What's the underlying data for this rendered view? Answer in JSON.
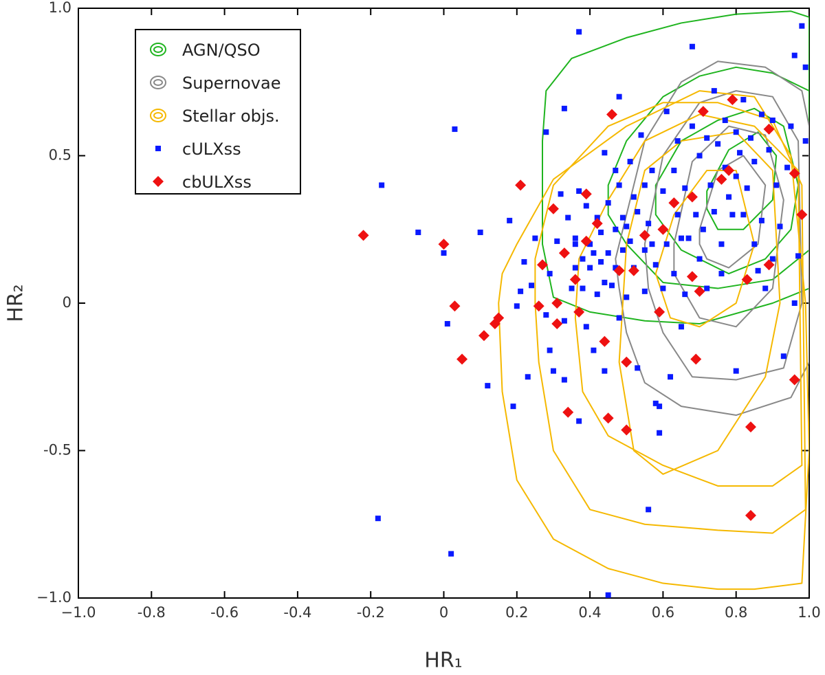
{
  "chart_data": {
    "type": "scatter",
    "xlabel": "HR₁",
    "ylabel": "HR₂",
    "xlim": [
      -1,
      1
    ],
    "ylim": [
      -1,
      1
    ],
    "xticks": [
      {
        "value": -1,
        "label": "−1.0"
      },
      -0.8,
      -0.6,
      -0.4,
      -0.2,
      0,
      0.2,
      0.4,
      0.6,
      0.8,
      {
        "value": 1,
        "label": "1.0"
      }
    ],
    "yticks": [
      {
        "value": -1,
        "label": "−1.0"
      },
      -0.5,
      0,
      0.5,
      {
        "value": 1,
        "label": "1.0"
      }
    ],
    "legend": "upper-left",
    "series": [
      {
        "name": "AGN/QSO",
        "color": "#1fb41f",
        "marker": "contour",
        "contours": [
          {
            "x": [
              0.27,
              0.28,
              0.35,
              0.5,
              0.65,
              0.8,
              0.95,
              1.0,
              1.0,
              0.9,
              0.7,
              0.55,
              0.4,
              0.3,
              0.27
            ],
            "y": [
              0.55,
              0.72,
              0.83,
              0.9,
              0.95,
              0.98,
              0.99,
              0.97,
              0.05,
              0.0,
              -0.07,
              -0.06,
              -0.03,
              0.02,
              0.2
            ]
          },
          {
            "x": [
              0.45,
              0.5,
              0.6,
              0.7,
              0.8,
              0.9,
              1.0,
              1.0,
              0.9,
              0.75,
              0.6,
              0.5,
              0.45
            ],
            "y": [
              0.4,
              0.55,
              0.7,
              0.77,
              0.8,
              0.78,
              0.72,
              0.18,
              0.08,
              0.05,
              0.07,
              0.2,
              0.3
            ]
          },
          {
            "x": [
              0.58,
              0.65,
              0.75,
              0.85,
              0.93,
              0.97,
              0.95,
              0.88,
              0.78,
              0.65,
              0.58
            ],
            "y": [
              0.4,
              0.55,
              0.62,
              0.66,
              0.6,
              0.4,
              0.25,
              0.15,
              0.1,
              0.18,
              0.3
            ]
          },
          {
            "x": [
              0.72,
              0.78,
              0.86,
              0.91,
              0.9,
              0.82,
              0.75,
              0.72
            ],
            "y": [
              0.38,
              0.52,
              0.58,
              0.5,
              0.35,
              0.25,
              0.25,
              0.32
            ]
          }
        ]
      },
      {
        "name": "Supernovae",
        "color": "#888888",
        "marker": "contour",
        "contours": [
          {
            "x": [
              0.48,
              0.55,
              0.65,
              0.75,
              0.88,
              0.98,
              1.0,
              1.0,
              0.95,
              0.8,
              0.65,
              0.55,
              0.5,
              0.48,
              0.47
            ],
            "y": [
              0.2,
              0.55,
              0.75,
              0.82,
              0.8,
              0.72,
              0.6,
              -0.2,
              -0.32,
              -0.38,
              -0.35,
              -0.27,
              -0.1,
              0.05,
              0.15
            ]
          },
          {
            "x": [
              0.55,
              0.6,
              0.7,
              0.8,
              0.9,
              0.97,
              0.98,
              0.93,
              0.8,
              0.68,
              0.6,
              0.56
            ],
            "y": [
              0.2,
              0.5,
              0.68,
              0.72,
              0.7,
              0.55,
              0.0,
              -0.22,
              -0.26,
              -0.25,
              -0.1,
              0.05
            ]
          },
          {
            "x": [
              0.63,
              0.68,
              0.78,
              0.88,
              0.93,
              0.9,
              0.8,
              0.7,
              0.63
            ],
            "y": [
              0.2,
              0.48,
              0.6,
              0.57,
              0.35,
              0.05,
              -0.08,
              -0.05,
              0.1
            ]
          },
          {
            "x": [
              0.7,
              0.75,
              0.82,
              0.88,
              0.86,
              0.78,
              0.72,
              0.7
            ],
            "y": [
              0.25,
              0.45,
              0.5,
              0.4,
              0.2,
              0.12,
              0.15,
              0.2
            ]
          }
        ]
      },
      {
        "name": "Stellar objs.",
        "color": "#f5b800",
        "marker": "contour",
        "contours": [
          {
            "x": [
              0.15,
              0.16,
              0.2,
              0.3,
              0.45,
              0.6,
              0.75,
              0.85,
              0.98,
              1.0,
              0.99,
              0.95,
              0.85,
              0.7,
              0.5,
              0.3,
              0.2,
              0.16,
              0.15
            ],
            "y": [
              0.0,
              -0.3,
              -0.6,
              -0.8,
              -0.9,
              -0.95,
              -0.97,
              -0.97,
              -0.95,
              -0.5,
              0.0,
              0.5,
              0.7,
              0.72,
              0.6,
              0.42,
              0.2,
              0.1,
              0.0
            ]
          },
          {
            "x": [
              0.25,
              0.3,
              0.45,
              0.6,
              0.75,
              0.9,
              0.98,
              0.99,
              0.9,
              0.75,
              0.55,
              0.4,
              0.3,
              0.26,
              0.25
            ],
            "y": [
              0.15,
              0.4,
              0.6,
              0.68,
              0.68,
              0.62,
              0.4,
              -0.7,
              -0.78,
              -0.77,
              -0.75,
              -0.7,
              -0.5,
              -0.2,
              0.0
            ]
          },
          {
            "x": [
              0.37,
              0.45,
              0.55,
              0.7,
              0.85,
              0.97,
              0.98,
              0.9,
              0.75,
              0.6,
              0.45,
              0.38,
              0.36,
              0.37
            ],
            "y": [
              0.15,
              0.35,
              0.55,
              0.64,
              0.6,
              0.45,
              -0.55,
              -0.62,
              -0.62,
              -0.55,
              -0.45,
              -0.3,
              -0.05,
              0.15
            ]
          },
          {
            "x": [
              0.5,
              0.55,
              0.65,
              0.8,
              0.9,
              0.92,
              0.88,
              0.75,
              0.6,
              0.52,
              0.48,
              0.5
            ],
            "y": [
              0.2,
              0.45,
              0.55,
              0.58,
              0.45,
              0.0,
              -0.25,
              -0.5,
              -0.58,
              -0.5,
              -0.2,
              0.2
            ]
          },
          {
            "x": [
              0.58,
              0.63,
              0.72,
              0.8,
              0.85,
              0.8,
              0.7,
              0.62,
              0.58
            ],
            "y": [
              0.1,
              0.3,
              0.45,
              0.45,
              0.2,
              0.0,
              -0.08,
              -0.05,
              0.1
            ]
          }
        ]
      },
      {
        "name": "cULXss",
        "color": "#0a1aff",
        "marker": "square",
        "x": [
          -0.18,
          0.02,
          -0.17,
          0.03,
          -0.07,
          0.0,
          0.01,
          0.1,
          0.12,
          0.19,
          0.18,
          0.2,
          0.21,
          0.22,
          0.23,
          0.24,
          0.25,
          0.28,
          0.28,
          0.29,
          0.3,
          0.29,
          0.31,
          0.32,
          0.33,
          0.33,
          0.33,
          0.34,
          0.35,
          0.36,
          0.36,
          0.37,
          0.37,
          0.37,
          0.38,
          0.38,
          0.39,
          0.39,
          0.4,
          0.41,
          0.41,
          0.42,
          0.42,
          0.43,
          0.43,
          0.44,
          0.44,
          0.45,
          0.45,
          0.45,
          0.46,
          0.47,
          0.47,
          0.48,
          0.48,
          0.48,
          0.49,
          0.49,
          0.5,
          0.51,
          0.51,
          0.52,
          0.52,
          0.53,
          0.53,
          0.54,
          0.55,
          0.55,
          0.55,
          0.56,
          0.56,
          0.57,
          0.57,
          0.58,
          0.58,
          0.59,
          0.59,
          0.6,
          0.6,
          0.61,
          0.61,
          0.62,
          0.63,
          0.63,
          0.64,
          0.64,
          0.65,
          0.65,
          0.66,
          0.66,
          0.67,
          0.68,
          0.68,
          0.69,
          0.7,
          0.7,
          0.71,
          0.72,
          0.72,
          0.73,
          0.74,
          0.74,
          0.75,
          0.76,
          0.76,
          0.77,
          0.77,
          0.78,
          0.79,
          0.8,
          0.8,
          0.8,
          0.81,
          0.82,
          0.82,
          0.83,
          0.84,
          0.85,
          0.85,
          0.86,
          0.87,
          0.87,
          0.88,
          0.89,
          0.9,
          0.9,
          0.91,
          0.92,
          0.93,
          0.94,
          0.95,
          0.96,
          0.96,
          0.97,
          0.98,
          0.99,
          0.99,
          0.47,
          0.36,
          0.4,
          0.5,
          0.44
        ],
        "y": [
          -0.73,
          -0.85,
          0.4,
          0.59,
          0.24,
          0.17,
          -0.07,
          0.24,
          -0.28,
          -0.35,
          0.28,
          -0.01,
          0.04,
          0.14,
          -0.25,
          0.06,
          0.22,
          0.58,
          -0.04,
          -0.16,
          -0.23,
          0.1,
          0.21,
          0.37,
          0.66,
          -0.06,
          -0.26,
          0.29,
          0.05,
          0.12,
          0.22,
          0.92,
          0.38,
          -0.4,
          0.15,
          0.05,
          -0.08,
          0.33,
          0.2,
          0.17,
          -0.16,
          0.03,
          0.29,
          0.24,
          0.14,
          0.51,
          -0.23,
          0.34,
          0.17,
          -0.99,
          0.06,
          0.12,
          0.25,
          0.7,
          0.4,
          -0.05,
          0.29,
          0.18,
          0.02,
          0.21,
          0.48,
          0.12,
          0.36,
          0.31,
          -0.22,
          0.57,
          0.18,
          0.4,
          0.04,
          0.27,
          -0.7,
          0.45,
          0.2,
          0.13,
          -0.34,
          -0.44,
          -0.35,
          0.05,
          0.38,
          0.65,
          0.2,
          -0.25,
          0.45,
          0.1,
          0.3,
          0.55,
          -0.08,
          0.22,
          0.39,
          0.03,
          0.22,
          0.87,
          0.6,
          0.3,
          0.5,
          0.15,
          0.25,
          0.56,
          0.05,
          0.4,
          0.72,
          0.31,
          0.54,
          0.2,
          0.1,
          0.62,
          0.46,
          0.36,
          0.3,
          0.58,
          -0.23,
          0.43,
          0.51,
          0.69,
          0.3,
          0.39,
          0.56,
          0.2,
          0.48,
          0.11,
          0.64,
          0.28,
          0.05,
          0.52,
          0.62,
          0.15,
          0.4,
          0.26,
          -0.18,
          0.46,
          0.6,
          0.84,
          0.0,
          0.16,
          0.94,
          0.8,
          0.55,
          0.45,
          0.2,
          0.12,
          0.26,
          0.07
        ]
      },
      {
        "name": "cbULXss",
        "color": "#ee1111",
        "marker": "diamond",
        "x": [
          -0.22,
          0.0,
          0.03,
          0.15,
          0.14,
          0.11,
          0.05,
          0.21,
          0.26,
          0.27,
          0.3,
          0.31,
          0.31,
          0.33,
          0.34,
          0.36,
          0.37,
          0.39,
          0.39,
          0.42,
          0.44,
          0.45,
          0.46,
          0.48,
          0.5,
          0.5,
          0.52,
          0.55,
          0.6,
          0.63,
          0.59,
          0.68,
          0.68,
          0.7,
          0.69,
          0.71,
          0.76,
          0.78,
          0.79,
          0.83,
          0.84,
          0.84,
          0.89,
          0.89,
          0.96,
          0.98,
          0.96
        ],
        "y": [
          0.23,
          0.2,
          -0.01,
          -0.05,
          -0.07,
          -0.11,
          -0.19,
          0.4,
          -0.01,
          0.13,
          0.32,
          0.0,
          -0.07,
          0.17,
          -0.37,
          0.08,
          -0.03,
          0.21,
          0.37,
          0.27,
          -0.13,
          -0.39,
          0.64,
          0.11,
          -0.2,
          -0.43,
          0.11,
          0.23,
          0.25,
          0.34,
          -0.03,
          0.36,
          0.09,
          0.04,
          -0.19,
          0.65,
          0.42,
          0.45,
          0.69,
          0.08,
          -0.42,
          -0.72,
          0.59,
          0.13,
          0.44,
          0.3,
          -0.26
        ]
      }
    ]
  }
}
